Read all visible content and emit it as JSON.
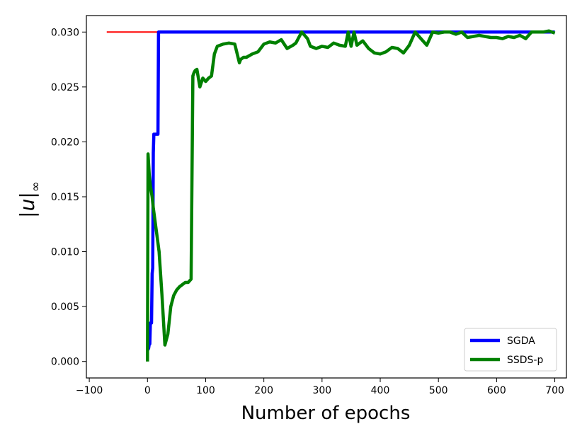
{
  "chart_data": {
    "type": "line",
    "xlabel": "Number of epochs",
    "ylabel_main": "|u|",
    "ylabel_sub": "∞",
    "xlim": [
      -105,
      720
    ],
    "ylim": [
      -0.0015,
      0.0315
    ],
    "xticks": [
      -100,
      0,
      100,
      200,
      300,
      400,
      500,
      600,
      700
    ],
    "xtick_labels": [
      "−100",
      "0",
      "100",
      "200",
      "300",
      "400",
      "500",
      "600",
      "700"
    ],
    "yticks": [
      0.0,
      0.005,
      0.01,
      0.015,
      0.02,
      0.025,
      0.03
    ],
    "ytick_labels": [
      "0.000",
      "0.005",
      "0.010",
      "0.015",
      "0.020",
      "0.025",
      "0.030"
    ],
    "grid": false,
    "legend_position": "lower-right",
    "colors": {
      "sgda": "#0000ff",
      "ssds": "#008000",
      "reference": "#ff0000"
    },
    "reference_line": {
      "x": [
        -70,
        20
      ],
      "y": [
        0.03,
        0.03
      ]
    },
    "series": [
      {
        "name": "SGDA",
        "color": "#0000ff",
        "x": [
          0,
          2,
          3,
          4,
          5,
          6,
          7,
          8,
          9,
          10,
          11,
          12,
          13,
          14,
          15,
          16,
          17,
          18,
          19,
          20,
          21,
          700
        ],
        "y": [
          0.001,
          0.0012,
          0.0016,
          0.0016,
          0.0035,
          0.0035,
          0.0035,
          0.008,
          0.0085,
          0.019,
          0.0207,
          0.0207,
          0.0207,
          0.0207,
          0.0207,
          0.0207,
          0.0207,
          0.0207,
          0.03,
          0.03,
          0.03,
          0.03
        ]
      },
      {
        "name": "SSDS-p",
        "color": "#008000",
        "x": [
          0,
          1,
          2,
          3,
          5,
          8,
          10,
          15,
          20,
          25,
          30,
          35,
          40,
          45,
          50,
          55,
          60,
          65,
          70,
          75,
          78,
          80,
          82,
          85,
          90,
          95,
          100,
          105,
          110,
          115,
          120,
          130,
          140,
          150,
          158,
          160,
          165,
          170,
          180,
          190,
          200,
          210,
          220,
          230,
          240,
          250,
          255,
          260,
          265,
          270,
          275,
          280,
          290,
          300,
          310,
          320,
          330,
          340,
          345,
          350,
          355,
          360,
          370,
          380,
          390,
          400,
          410,
          420,
          430,
          440,
          450,
          460,
          470,
          480,
          490,
          500,
          510,
          520,
          530,
          540,
          550,
          560,
          570,
          580,
          590,
          600,
          610,
          620,
          630,
          640,
          650,
          660,
          670,
          680,
          690,
          700
        ],
        "y": [
          0.0,
          0.0189,
          0.018,
          0.017,
          0.016,
          0.015,
          0.014,
          0.012,
          0.01,
          0.006,
          0.0015,
          0.0025,
          0.005,
          0.006,
          0.0065,
          0.0068,
          0.007,
          0.0072,
          0.0072,
          0.0075,
          0.026,
          0.0263,
          0.0265,
          0.0266,
          0.025,
          0.0258,
          0.0255,
          0.0258,
          0.026,
          0.028,
          0.0287,
          0.0289,
          0.029,
          0.0289,
          0.0272,
          0.0275,
          0.0277,
          0.0277,
          0.028,
          0.0282,
          0.0289,
          0.0291,
          0.029,
          0.0293,
          0.0285,
          0.0288,
          0.029,
          0.0295,
          0.03,
          0.0297,
          0.0294,
          0.0287,
          0.0285,
          0.0287,
          0.0286,
          0.029,
          0.0288,
          0.0287,
          0.03,
          0.0287,
          0.03,
          0.0288,
          0.0292,
          0.0285,
          0.0281,
          0.028,
          0.0282,
          0.0286,
          0.0285,
          0.0281,
          0.0288,
          0.03,
          0.0294,
          0.0288,
          0.03,
          0.0299,
          0.03,
          0.03,
          0.0298,
          0.03,
          0.0295,
          0.0296,
          0.0297,
          0.0296,
          0.0295,
          0.0295,
          0.0294,
          0.0296,
          0.0295,
          0.0297,
          0.0294,
          0.03,
          0.03,
          0.03,
          0.0301,
          0.0299
        ]
      }
    ]
  }
}
